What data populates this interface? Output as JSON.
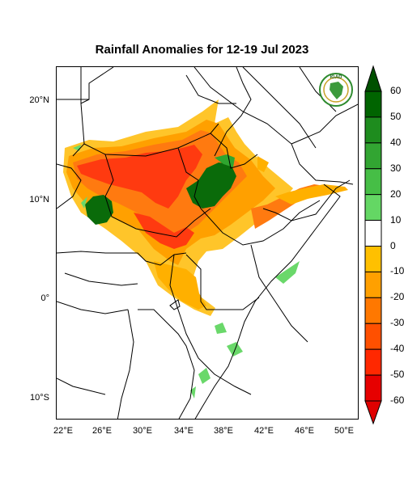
{
  "title": "Rainfall Anomalies for 12-19 Jul 2023",
  "logo": {
    "text": "IGAD",
    "icon": "igad-logo-icon"
  },
  "lat_labels": [
    "20°N",
    "10°N",
    "0°",
    "10°S"
  ],
  "lon_labels": [
    "22°E",
    "26°E",
    "30°E",
    "34°E",
    "38°E",
    "42°E",
    "46°E",
    "50°E"
  ],
  "colorbar": {
    "labels": [
      "60",
      "50",
      "40",
      "30",
      "20",
      "10",
      "0",
      "-10",
      "-20",
      "-30",
      "-40",
      "-50",
      "-60"
    ],
    "colors": [
      "#006400",
      "#1e8c1e",
      "#32a532",
      "#46be46",
      "#64d764",
      "#ffffff",
      "#ffc000",
      "#ffa000",
      "#ff7800",
      "#ff5000",
      "#ff2800",
      "#e60000"
    ],
    "top_arrow_color": "#005000",
    "bottom_arrow_color": "#e00000"
  },
  "colors": {
    "dry_dark": "#ff3a10",
    "dry_mid": "#ff7a10",
    "dry_light": "#ffb000",
    "dry_pale": "#ffc52a",
    "wet_dark": "#0a6b0a",
    "wet_light": "#6ad86a"
  }
}
